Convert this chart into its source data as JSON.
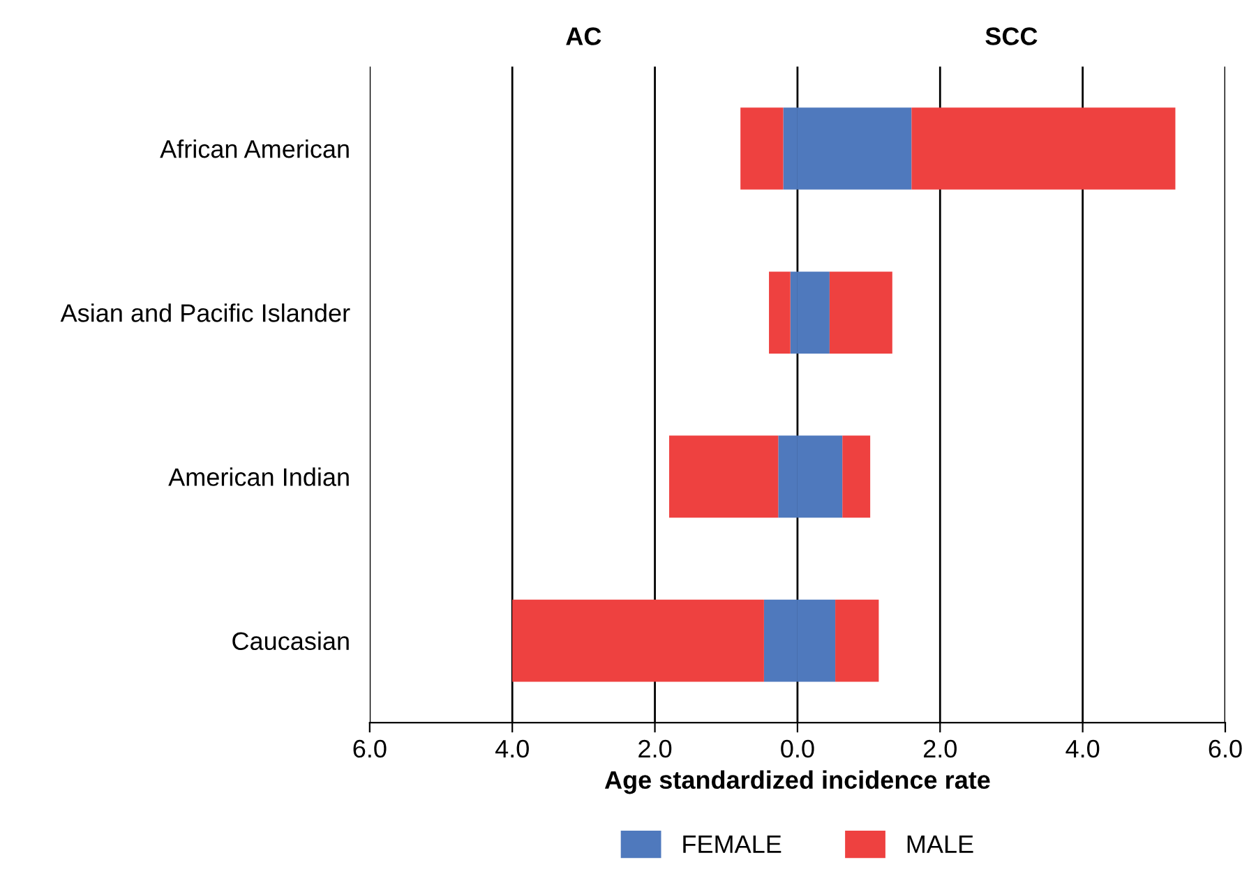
{
  "chart_data": {
    "type": "bar",
    "orientation": "horizontal",
    "stacked": true,
    "xlabel": "Age standardized incidence rate",
    "annotations": [
      "AC",
      "SCC"
    ],
    "categories": [
      "African American",
      "Asian and Pacific Islander",
      "American Indian",
      "Caucasian"
    ],
    "series": [
      {
        "name": "FEMALE",
        "color": "#4f79bd",
        "values": [
          -0.2,
          -0.1,
          -0.27,
          -0.47
        ]
      },
      {
        "name": "MALE",
        "color": "#ee4140",
        "values": [
          -0.6,
          -0.3,
          -1.53,
          -3.53
        ]
      },
      {
        "color": "#4f79bd",
        "values": [
          1.6,
          0.45,
          0.63,
          0.53
        ]
      },
      {
        "color": "#ee4140",
        "values": [
          3.7,
          0.88,
          0.39,
          0.61
        ]
      }
    ],
    "xlim": [
      -6,
      6
    ],
    "xticks": [
      {
        "value": -6,
        "label": "6.0"
      },
      {
        "value": -4,
        "label": "4.0"
      },
      {
        "value": -2,
        "label": "2.0"
      },
      {
        "value": 0,
        "label": "0.0"
      },
      {
        "value": 2,
        "label": "2.0"
      },
      {
        "value": 4,
        "label": "4.0"
      },
      {
        "value": 6,
        "label": "6.0"
      }
    ],
    "grid": "x",
    "legend": "bottom"
  }
}
